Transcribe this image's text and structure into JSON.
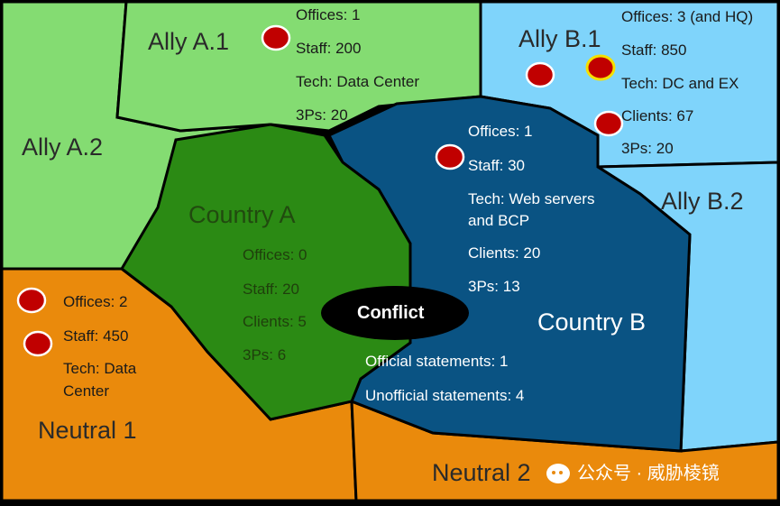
{
  "regions": {
    "ally_a1": {
      "name": "Ally A.1",
      "lines": [
        "Offices: 1",
        "Staff: 200",
        "Tech: Data Center",
        "3Ps: 20"
      ],
      "color": "#84dc72"
    },
    "ally_a2": {
      "name": "Ally A.2",
      "color": "#84dc72"
    },
    "ally_b1": {
      "name": "Ally B.1",
      "lines": [
        "Offices: 3 (and HQ)",
        "Staff: 850",
        "Tech: DC and EX",
        "Clients: 67",
        "3Ps: 20"
      ],
      "color": "#7fd4fb"
    },
    "ally_b2": {
      "name": "Ally B.2",
      "color": "#7fd4fb"
    },
    "country_a": {
      "name": "Country A",
      "lines": [
        "Offices: 0",
        "Staff: 20",
        "Clients: 5",
        "3Ps: 6"
      ],
      "color": "#2b8a14"
    },
    "country_b": {
      "name": "Country B",
      "lines": [
        "Offices: 1",
        "Staff: 30",
        "Tech: Web servers",
        "and BCP",
        "Clients: 20",
        "3Ps: 13"
      ],
      "statements": [
        "Official statements: 1",
        "Unofficial statements: 4"
      ],
      "color": "#0a5383"
    },
    "neutral_1": {
      "name": "Neutral 1",
      "lines": [
        "Offices: 2",
        "Staff: 450",
        "Tech: Data",
        "Center"
      ],
      "color": "#ea8a0c"
    },
    "neutral_2": {
      "name": "Neutral 2",
      "color": "#ea8a0c"
    }
  },
  "conflict": {
    "label": "Conflict"
  },
  "markers": {
    "office_color": "#c00000",
    "hq_ring_color": "#f5e000"
  },
  "watermark": {
    "text": "公众号 · 威胁棱镜"
  }
}
